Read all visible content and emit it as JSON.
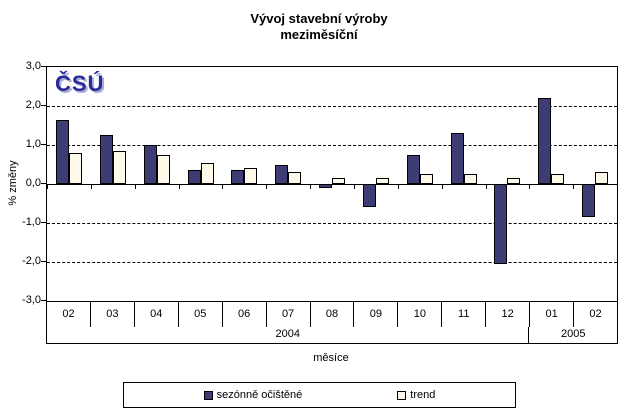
{
  "title": {
    "line1": "Vývoj stavební výroby",
    "line2": "meziměsíční"
  },
  "logo_text": "ČSÚ",
  "chart_data": {
    "type": "bar",
    "title": "Vývoj stavební výroby meziměsíční",
    "xlabel": "měsíce",
    "ylabel": "% změny",
    "ylim": [
      -3.0,
      3.0
    ],
    "ytick_labels": [
      "3,0",
      "2,0",
      "1,0",
      "0,0",
      "-1,0",
      "-2,0",
      "-3,0"
    ],
    "grid": "horizontal-dashed",
    "legend_position": "bottom",
    "categories": [
      "02",
      "03",
      "04",
      "05",
      "06",
      "07",
      "08",
      "09",
      "10",
      "11",
      "12",
      "01",
      "02"
    ],
    "year_groups": [
      {
        "label": "2004",
        "span": 11
      },
      {
        "label": "2005",
        "span": 2
      }
    ],
    "series": [
      {
        "name": "sezónně očištěné",
        "color": "#3E3C74",
        "values": [
          1.65,
          1.25,
          1.0,
          0.35,
          0.35,
          0.5,
          -0.1,
          -0.6,
          0.75,
          1.3,
          -2.05,
          2.2,
          -0.85
        ]
      },
      {
        "name": "trend",
        "color": "#FFF9EA",
        "values": [
          0.8,
          0.85,
          0.75,
          0.55,
          0.4,
          0.3,
          0.15,
          0.15,
          0.25,
          0.25,
          0.15,
          0.25,
          0.3
        ]
      }
    ]
  },
  "colors": {
    "seasonal_bar": "#3E3C74",
    "trend_bar": "#FFF9EA",
    "logo_blue": "#2A2A99",
    "logo_shadow": "#A9ADD6",
    "axis_black": "#000000"
  }
}
